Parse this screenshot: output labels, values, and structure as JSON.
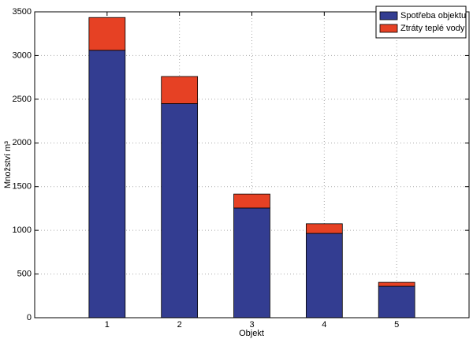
{
  "chart_data": {
    "type": "stacked-bar",
    "x": [
      1,
      2,
      3,
      4,
      5
    ],
    "series": [
      {
        "name": "Spotřeba objektu",
        "color": "#333d91",
        "values": [
          3060,
          2450,
          1255,
          965,
          360
        ]
      },
      {
        "name": "Ztráty teplé vody",
        "color": "#e64124",
        "values": [
          375,
          310,
          160,
          110,
          45
        ]
      }
    ],
    "xlabel": "Objekt",
    "ylabel": "Množství m³",
    "xlim": [
      0,
      6
    ],
    "xticks": [
      1,
      2,
      3,
      4,
      5
    ],
    "ylim": [
      0,
      3500
    ],
    "yticks": [
      0,
      500,
      1000,
      1500,
      2000,
      2500,
      3000,
      3500
    ],
    "bar_width": 0.5,
    "grid": true,
    "legend": "northeast"
  }
}
